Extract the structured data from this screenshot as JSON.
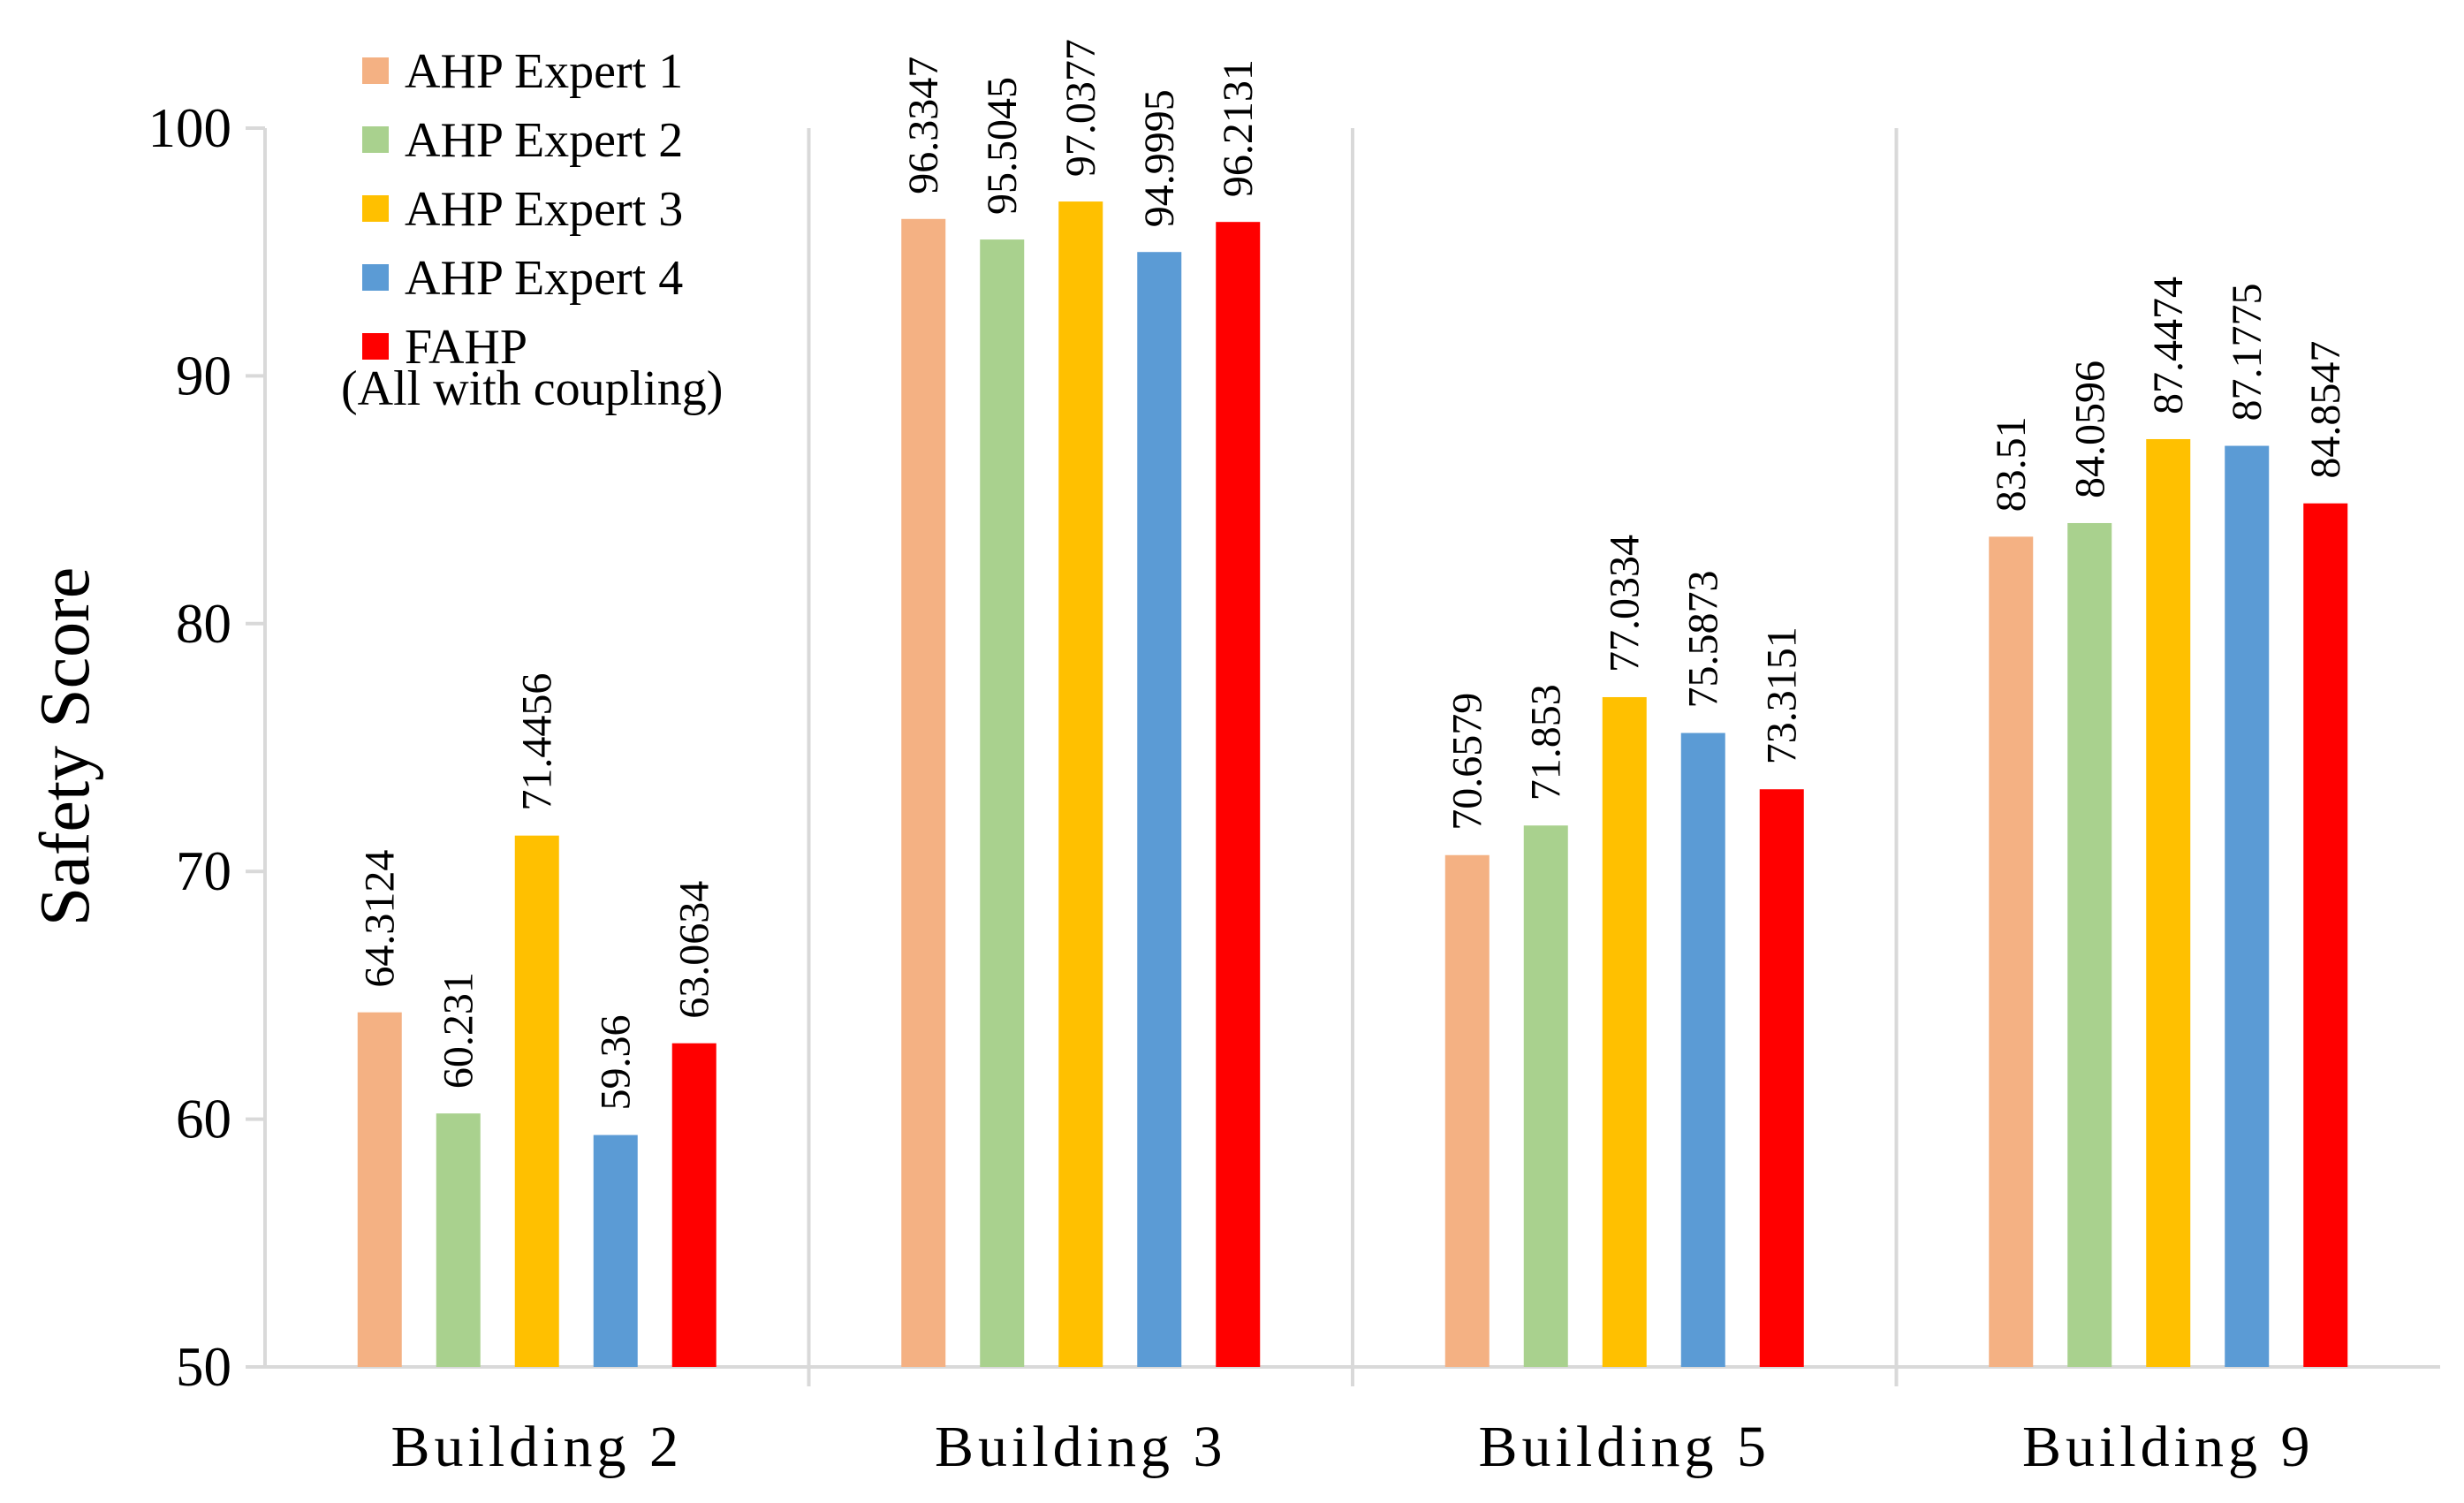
{
  "chart_data": {
    "type": "bar",
    "title": "",
    "xlabel": "",
    "ylabel": "Safety Score",
    "ylim": [
      50,
      100
    ],
    "yticks": [
      50,
      60,
      70,
      80,
      90,
      100
    ],
    "categories": [
      "Building 2",
      "Building 3",
      "Building 5",
      "Building 9"
    ],
    "series": [
      {
        "name": "AHP Expert 1",
        "color": "#F4B183",
        "values": [
          64.3124,
          96.3347,
          70.6579,
          83.51
        ],
        "labels": [
          "64.3124",
          "96.3347",
          "70.6579",
          "83.51"
        ]
      },
      {
        "name": "AHP Expert 2",
        "color": "#A9D18E",
        "values": [
          60.231,
          95.5045,
          71.853,
          84.0596
        ],
        "labels": [
          "60.231",
          "95.5045",
          "71.853",
          "84.0596"
        ]
      },
      {
        "name": "AHP Expert 3",
        "color": "#FFC000",
        "values": [
          71.4456,
          97.0377,
          77.0334,
          87.4474
        ],
        "labels": [
          "71.4456",
          "97.0377",
          "77.0334",
          "87.4474"
        ]
      },
      {
        "name": "AHP Expert 4",
        "color": "#5B9BD5",
        "values": [
          59.36,
          94.9995,
          75.5873,
          87.1775
        ],
        "labels": [
          "59.36",
          "94.9995",
          "75.5873",
          "87.1775"
        ]
      },
      {
        "name": "FAHP",
        "color": "#FF0000",
        "values": [
          63.0634,
          96.2131,
          73.3151,
          84.8547
        ],
        "labels": [
          "63.0634",
          "96.2131",
          "73.3151",
          "84.8547"
        ]
      }
    ],
    "legend_note": "(All with coupling)",
    "legend_position": "top-left",
    "grid": false,
    "category_separators": true
  }
}
